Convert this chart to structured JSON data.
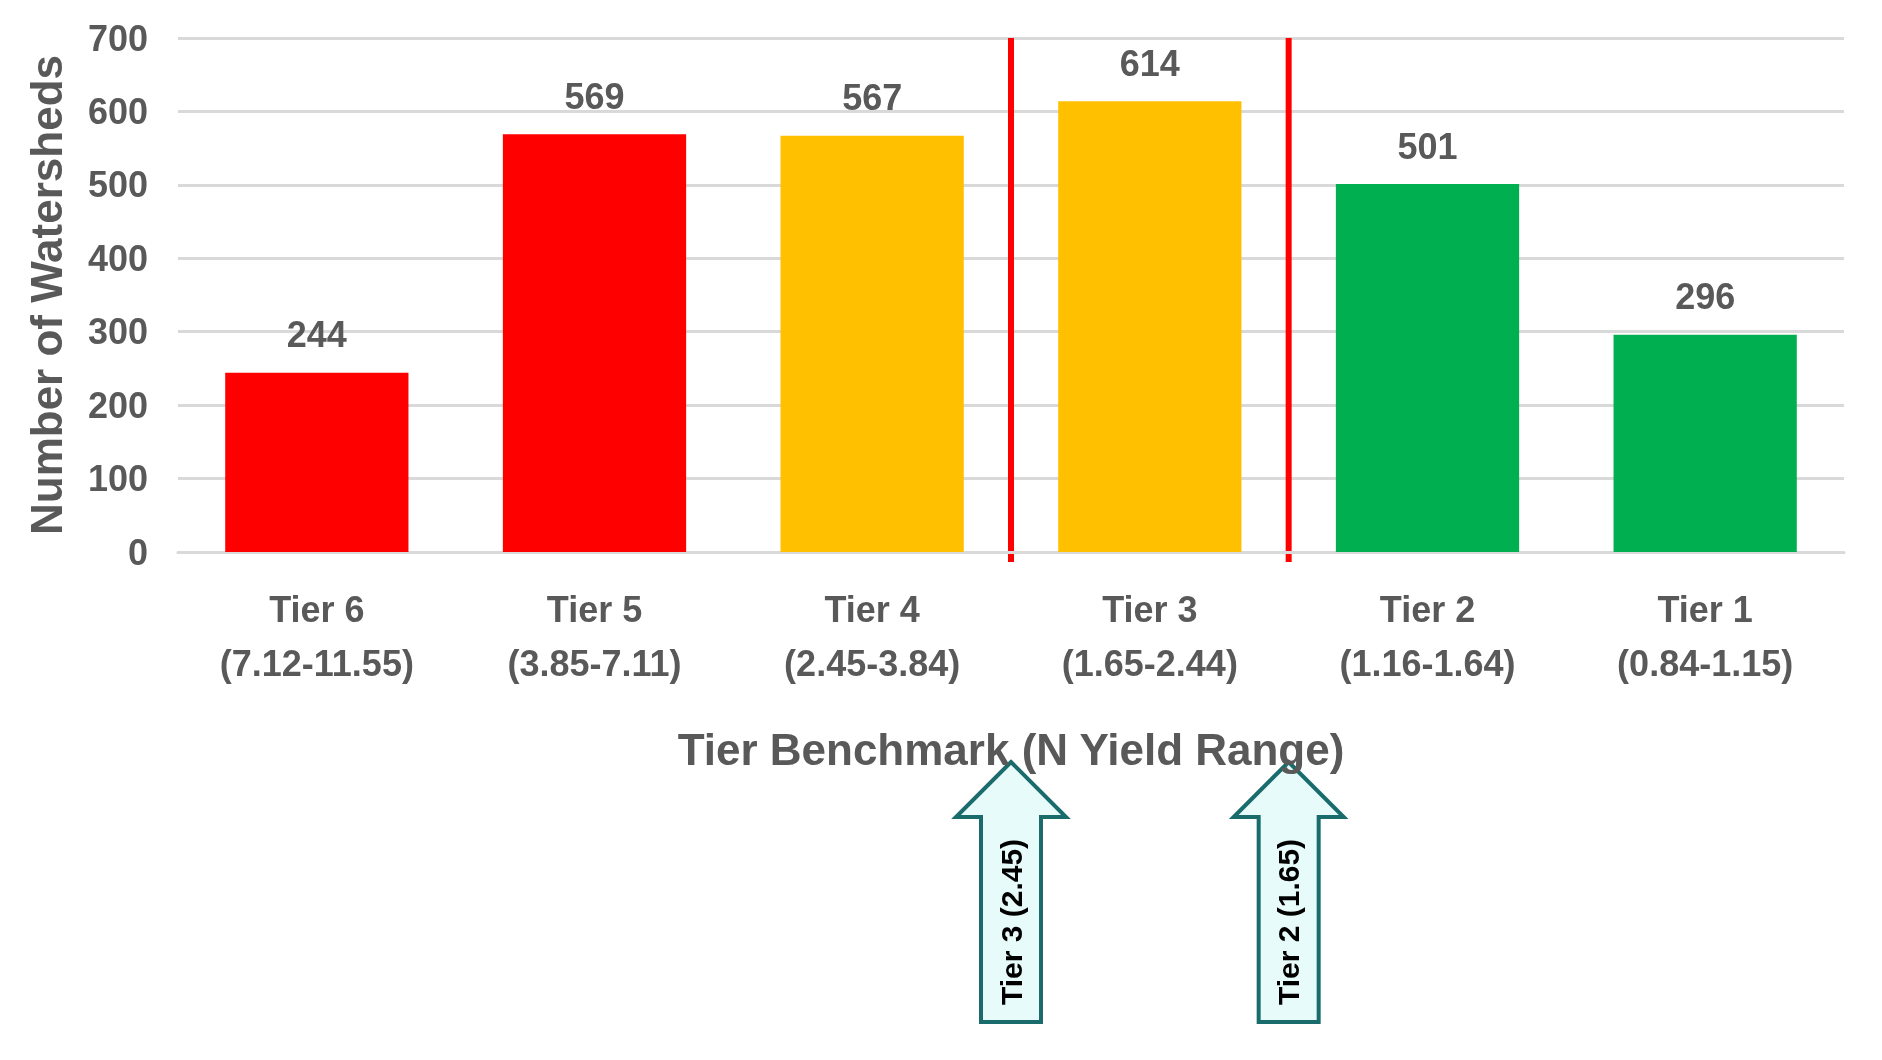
{
  "chart_data": {
    "type": "bar",
    "xlabel": "Tier Benchmark (N Yield Range)",
    "ylabel": "Number of Watersheds",
    "categories": [
      "Tier 6\n(7.12-11.55)",
      "Tier 5\n(3.85-7.11)",
      "Tier 4\n(2.45-3.84)",
      "Tier 3\n(1.65-2.44)",
      "Tier 2\n(1.16-1.64)",
      "Tier 1\n(0.84-1.15)"
    ],
    "values": [
      244,
      569,
      567,
      614,
      501,
      296
    ],
    "colors": [
      "#ff0000",
      "#ff0000",
      "#ffc000",
      "#ffc000",
      "#00b050",
      "#00b050"
    ],
    "ylim": [
      0,
      700
    ],
    "yticks": [
      0,
      100,
      200,
      300,
      400,
      500,
      600,
      700
    ],
    "grid": "y",
    "data_labels": true,
    "annotations": [
      "Tier 3 (2.45)",
      "Tier 2 (1.65)"
    ]
  }
}
